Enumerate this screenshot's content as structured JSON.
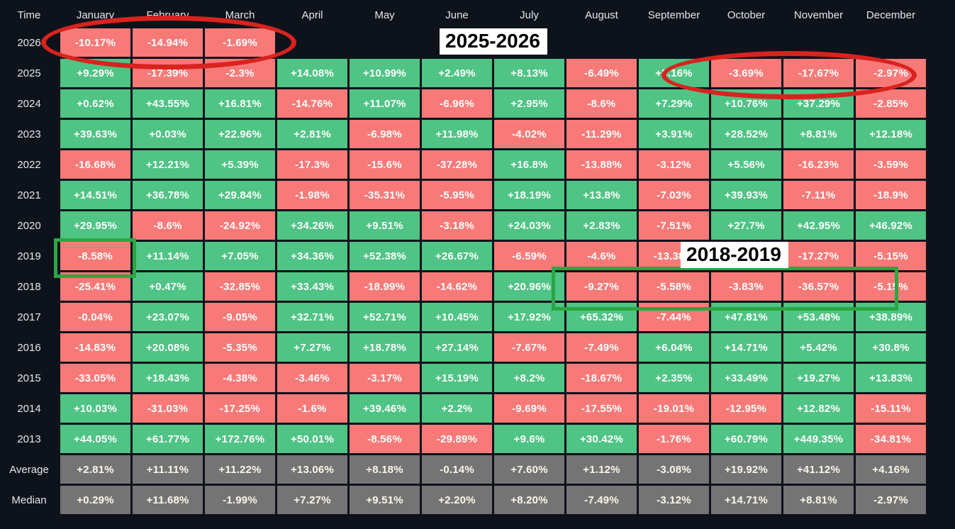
{
  "chart_data": {
    "type": "heatmap",
    "corner_label": "Time",
    "columns": [
      "January",
      "February",
      "March",
      "April",
      "May",
      "June",
      "July",
      "August",
      "September",
      "October",
      "November",
      "December"
    ],
    "rows": [
      {
        "label": "2026",
        "kind": "year",
        "values": [
          "-10.17%",
          "-14.94%",
          "-1.69%",
          null,
          null,
          null,
          null,
          null,
          null,
          null,
          null,
          null
        ]
      },
      {
        "label": "2025",
        "kind": "year",
        "values": [
          "+9.29%",
          "-17.39%",
          "-2.3%",
          "+14.08%",
          "+10.99%",
          "+2.49%",
          "+8.13%",
          "-6.49%",
          "+5.16%",
          "-3.69%",
          "-17.67%",
          "-2.97%"
        ]
      },
      {
        "label": "2024",
        "kind": "year",
        "values": [
          "+0.62%",
          "+43.55%",
          "+16.81%",
          "-14.76%",
          "+11.07%",
          "-6.96%",
          "+2.95%",
          "-8.6%",
          "+7.29%",
          "+10.76%",
          "+37.29%",
          "-2.85%"
        ]
      },
      {
        "label": "2023",
        "kind": "year",
        "values": [
          "+39.63%",
          "+0.03%",
          "+22.96%",
          "+2.81%",
          "-6.98%",
          "+11.98%",
          "-4.02%",
          "-11.29%",
          "+3.91%",
          "+28.52%",
          "+8.81%",
          "+12.18%"
        ]
      },
      {
        "label": "2022",
        "kind": "year",
        "values": [
          "-16.68%",
          "+12.21%",
          "+5.39%",
          "-17.3%",
          "-15.6%",
          "-37.28%",
          "+16.8%",
          "-13.88%",
          "-3.12%",
          "+5.56%",
          "-16.23%",
          "-3.59%"
        ]
      },
      {
        "label": "2021",
        "kind": "year",
        "values": [
          "+14.51%",
          "+36.78%",
          "+29.84%",
          "-1.98%",
          "-35.31%",
          "-5.95%",
          "+18.19%",
          "+13.8%",
          "-7.03%",
          "+39.93%",
          "-7.11%",
          "-18.9%"
        ]
      },
      {
        "label": "2020",
        "kind": "year",
        "values": [
          "+29.95%",
          "-8.6%",
          "-24.92%",
          "+34.26%",
          "+9.51%",
          "-3.18%",
          "+24.03%",
          "+2.83%",
          "-7.51%",
          "+27.7%",
          "+42.95%",
          "+46.92%"
        ]
      },
      {
        "label": "2019",
        "kind": "year",
        "values": [
          "-8.58%",
          "+11.14%",
          "+7.05%",
          "+34.36%",
          "+52.38%",
          "+26.67%",
          "-6.59%",
          "-4.6%",
          "-13.38%",
          " ",
          "-17.27%",
          "-5.15%"
        ]
      },
      {
        "label": "2018",
        "kind": "year",
        "values": [
          "-25.41%",
          "+0.47%",
          "-32.85%",
          "+33.43%",
          "-18.99%",
          "-14.62%",
          "+20.96%",
          "-9.27%",
          "-5.58%",
          "-3.83%",
          "-36.57%",
          "-5.15%"
        ]
      },
      {
        "label": "2017",
        "kind": "year",
        "values": [
          "-0.04%",
          "+23.07%",
          "-9.05%",
          "+32.71%",
          "+52.71%",
          "+10.45%",
          "+17.92%",
          "+65.32%",
          "-7.44%",
          "+47.81%",
          "+53.48%",
          "+38.89%"
        ]
      },
      {
        "label": "2016",
        "kind": "year",
        "values": [
          "-14.83%",
          "+20.08%",
          "-5.35%",
          "+7.27%",
          "+18.78%",
          "+27.14%",
          "-7.67%",
          "-7.49%",
          "+6.04%",
          "+14.71%",
          "+5.42%",
          "+30.8%"
        ]
      },
      {
        "label": "2015",
        "kind": "year",
        "values": [
          "-33.05%",
          "+18.43%",
          "-4.38%",
          "-3.46%",
          "-3.17%",
          "+15.19%",
          "+8.2%",
          "-18.67%",
          "+2.35%",
          "+33.49%",
          "+19.27%",
          "+13.83%"
        ]
      },
      {
        "label": "2014",
        "kind": "year",
        "values": [
          "+10.03%",
          "-31.03%",
          "-17.25%",
          "-1.6%",
          "+39.46%",
          "+2.2%",
          "-9.69%",
          "-17.55%",
          "-19.01%",
          "-12.95%",
          "+12.82%",
          "-15.11%"
        ]
      },
      {
        "label": "2013",
        "kind": "year",
        "values": [
          "+44.05%",
          "+61.77%",
          "+172.76%",
          "+50.01%",
          "-8.56%",
          "-29.89%",
          "+9.6%",
          "+30.42%",
          "-1.76%",
          "+60.79%",
          "+449.35%",
          "-34.81%"
        ]
      },
      {
        "label": "Average",
        "kind": "summary",
        "values": [
          "+2.81%",
          "+11.11%",
          "+11.22%",
          "+13.06%",
          "+8.18%",
          "-0.14%",
          "+7.60%",
          "+1.12%",
          "-3.08%",
          "+19.92%",
          "+41.12%",
          "+4.16%"
        ]
      },
      {
        "label": "Median",
        "kind": "summary",
        "values": [
          "+0.29%",
          "+11.68%",
          "-1.99%",
          "+7.27%",
          "+9.51%",
          "+2.20%",
          "+8.20%",
          "-7.49%",
          "-3.12%",
          "+14.71%",
          "+8.81%",
          "-2.97%"
        ]
      }
    ],
    "masked_cell": {
      "row": "2019",
      "column": "October",
      "note": "value covered by the 2018-2019 annotation label"
    },
    "legend_position": "none",
    "grid": "black gaps between cells"
  },
  "annotations": {
    "label_top": "2025-2026",
    "label_bottom": "2018-2019",
    "red_ellipses": [
      "2026 January-March",
      "2025 October-December"
    ],
    "green_boxes": [
      "2019 January",
      "2018 August-December"
    ]
  },
  "colors": {
    "positive": "#4fc484",
    "negative": "#f87a78",
    "summary": "#747474",
    "background": "#0e121b",
    "annotation_red": "#d8231f",
    "annotation_green": "#2ba642",
    "header_text": "#e3e7ee",
    "cell_text": "#ffffff"
  }
}
